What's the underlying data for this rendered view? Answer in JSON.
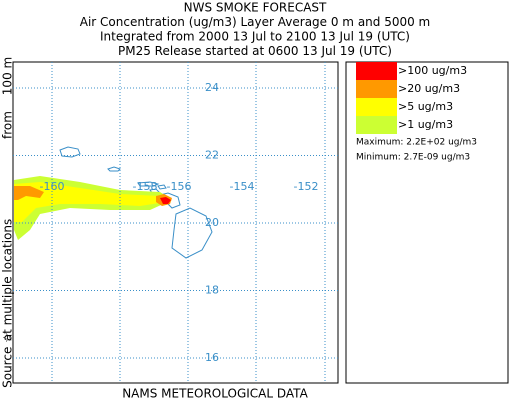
{
  "header": {
    "lines": [
      "NWS SMOKE FORECAST",
      "Air Concentration (ug/m3) Layer Average    0 m and  5000 m",
      "Integrated from 2000 13 Jul to 2100 13 Jul 19 (UTC)",
      "PM25 Release started at 0600 13 Jul 19 (UTC)"
    ]
  },
  "map": {
    "lat_labels": [
      "24",
      "22",
      "20",
      "18",
      "16"
    ],
    "lon_labels": [
      "-160",
      "-158",
      "-156",
      "-154",
      "-152"
    ]
  },
  "legend": {
    "items": [
      {
        "label": ">100 ug/m3",
        "color": "#ff0000"
      },
      {
        "label": ">20 ug/m3",
        "color": "#ff9900"
      },
      {
        "label": ">5 ug/m3",
        "color": "#ffff00"
      },
      {
        "label": ">1 ug/m3",
        "color": "#ccff33"
      }
    ],
    "maximum": "Maximum: 2.2E+02 ug/m3",
    "minimum": "Minimum: 2.7E-09 ug/m3"
  },
  "side_label": [
    "Source ☆",
    "at multiple locations",
    "from",
    "100 m"
  ],
  "footer": "NAMS METEOROLOGICAL DATA"
}
